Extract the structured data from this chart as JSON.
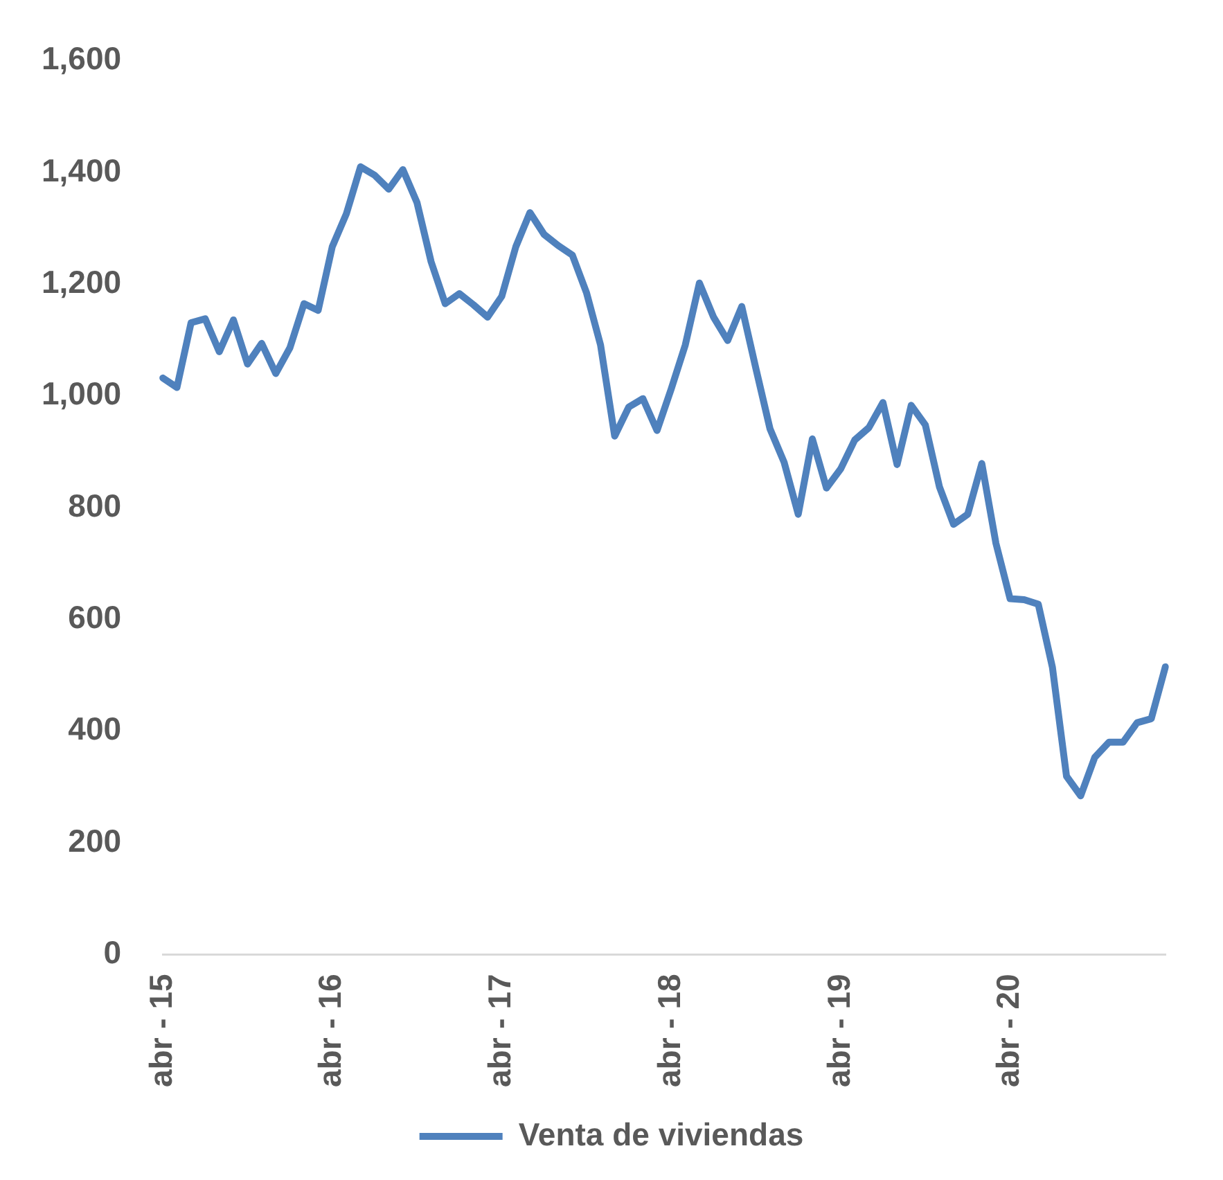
{
  "chart_data": {
    "type": "line",
    "categories": [
      "abr - 15",
      null,
      null,
      null,
      null,
      null,
      null,
      null,
      null,
      null,
      null,
      null,
      "abr - 16",
      null,
      null,
      null,
      null,
      null,
      null,
      null,
      null,
      null,
      null,
      null,
      "abr - 17",
      null,
      null,
      null,
      null,
      null,
      null,
      null,
      null,
      null,
      null,
      null,
      "abr - 18",
      null,
      null,
      null,
      null,
      null,
      null,
      null,
      null,
      null,
      null,
      null,
      "abr - 19",
      null,
      null,
      null,
      null,
      null,
      null,
      null,
      null,
      null,
      null,
      null,
      "abr - 20",
      null,
      null,
      null,
      null,
      null,
      null,
      null,
      null,
      null,
      null,
      null
    ],
    "series": [
      {
        "name": "Venta de viviendas",
        "color": "#4f81bd",
        "values": [
          1032,
          1015,
          1131,
          1138,
          1079,
          1136,
          1057,
          1094,
          1040,
          1086,
          1165,
          1153,
          1267,
          1326,
          1410,
          1395,
          1370,
          1405,
          1346,
          1240,
          1165,
          1183,
          1163,
          1141,
          1178,
          1267,
          1328,
          1289,
          1269,
          1252,
          1185,
          1091,
          928,
          980,
          995,
          938,
          1012,
          1091,
          1202,
          1141,
          1099,
          1160,
          1049,
          941,
          881,
          788,
          923,
          835,
          869,
          921,
          943,
          988,
          877,
          983,
          948,
          837,
          770,
          788,
          879,
          736,
          637,
          635,
          627,
          514,
          319,
          284,
          353,
          380,
          380,
          415,
          422,
          515
        ]
      }
    ],
    "ylim": [
      0,
      1600
    ],
    "yticks": [
      0,
      {
        "value": 200,
        "label": "200"
      },
      {
        "value": 400,
        "label": "400"
      },
      {
        "value": 600,
        "label": "600"
      },
      {
        "value": 800,
        "label": "800"
      },
      {
        "value": 1000,
        "label": "1,000"
      },
      {
        "value": 1200,
        "label": "1,200"
      },
      {
        "value": 1400,
        "label": "1,400"
      },
      {
        "value": 1600,
        "label": "1,600"
      }
    ],
    "grid": false,
    "legend": "bottom",
    "marker": "none",
    "line_style": "solid"
  }
}
